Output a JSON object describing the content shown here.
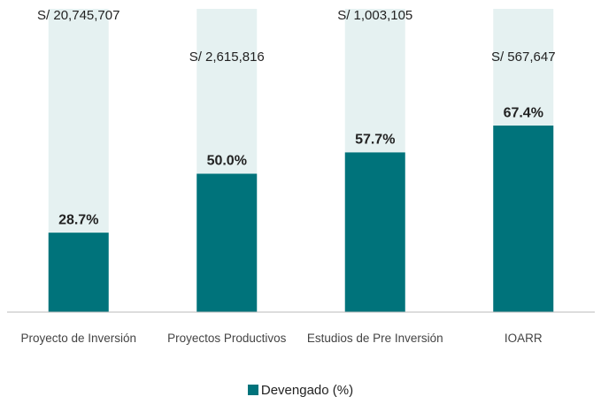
{
  "chart_data": {
    "type": "bar",
    "categories": [
      "Proyecto de Inversión",
      "Proyectos Productivos",
      "Estudios de Pre Inversión",
      "IOARR"
    ],
    "series": [
      {
        "name": "Devengado (%)",
        "color": "#00737b",
        "values": [
          28.7,
          50.0,
          57.7,
          67.4
        ],
        "value_labels": [
          "28.7%",
          "50.0%",
          "57.7%",
          "67.4%"
        ]
      }
    ],
    "annotations": [
      "S/ 20,745,707",
      "S/ 2,615,816",
      "S/ 1,003,105",
      "S/ 567,647"
    ],
    "background_color": "#e5f1f1",
    "ylim": [
      0,
      100
    ],
    "legend": "bottom"
  }
}
